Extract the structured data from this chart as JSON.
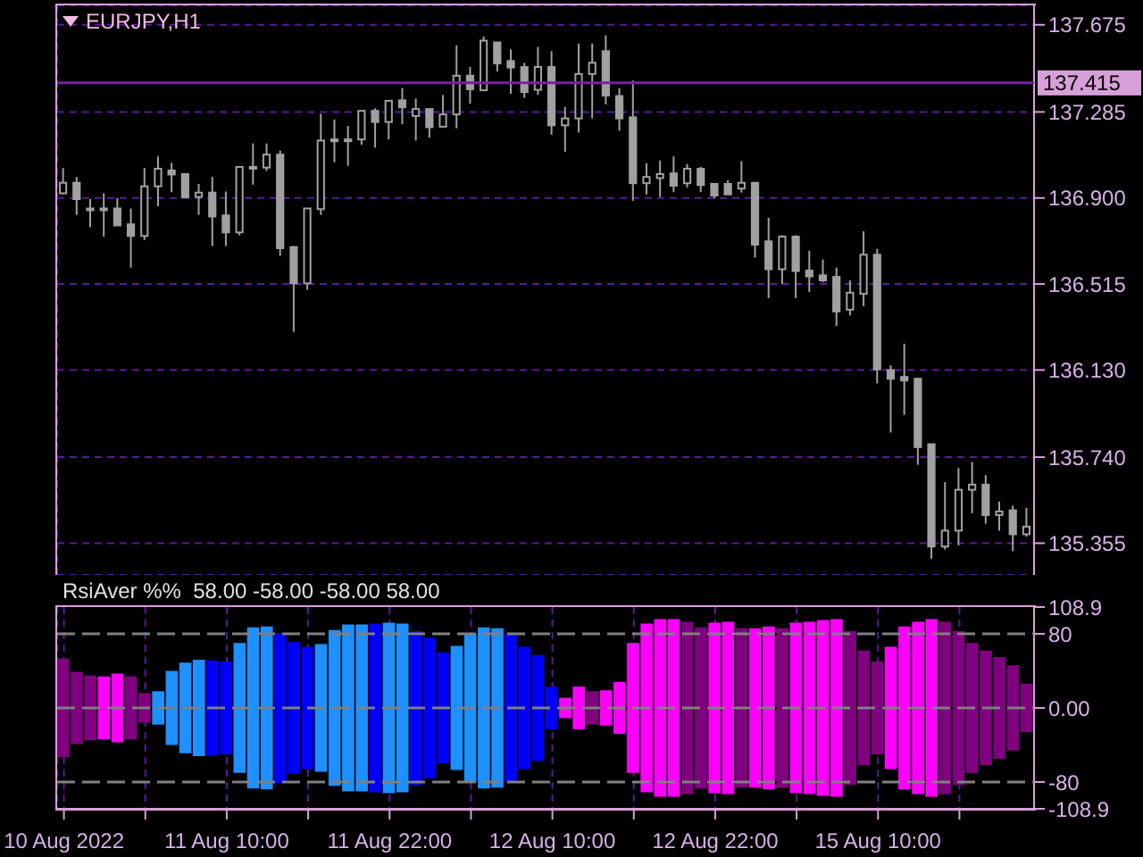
{
  "chart_data": [
    {
      "type": "candlestick",
      "title": "EURJPY,H1",
      "color": "#a0a0a0",
      "tick_labels": "y",
      "grid": true,
      "categories": [
        null,
        null,
        null,
        null,
        null,
        null,
        null,
        null,
        null,
        null,
        null,
        null,
        null,
        null,
        null,
        null,
        null,
        null,
        null,
        null,
        null,
        null,
        null,
        null,
        null,
        null,
        null,
        null,
        null,
        null,
        null,
        null,
        null,
        null,
        null,
        null,
        null,
        null,
        null,
        null,
        null,
        null,
        null,
        null,
        null,
        null,
        null,
        null,
        null,
        null,
        null,
        null,
        null,
        null,
        null,
        null,
        null,
        null,
        null,
        null,
        null,
        null,
        null,
        null,
        null,
        null,
        null,
        null,
        null,
        null,
        null,
        null
      ],
      "ohlc": [
        [
          136.921,
          137.034,
          136.916,
          136.968
        ],
        [
          136.968,
          136.994,
          136.824,
          136.895
        ],
        [
          136.853,
          136.895,
          136.769,
          136.853
        ],
        [
          136.853,
          136.921,
          136.727,
          136.853
        ],
        [
          136.853,
          136.9,
          136.777,
          136.777
        ],
        [
          136.782,
          136.853,
          136.588,
          136.73
        ],
        [
          136.73,
          137.034,
          136.712,
          136.952
        ],
        [
          136.952,
          137.086,
          136.863,
          137.031
        ],
        [
          137.023,
          137.057,
          136.926,
          137.005
        ],
        [
          137.007,
          137.01,
          136.903,
          136.903
        ],
        [
          136.905,
          136.963,
          136.824,
          136.924
        ],
        [
          136.924,
          136.994,
          136.685,
          136.817
        ],
        [
          136.822,
          136.929,
          136.685,
          136.746
        ],
        [
          136.746,
          137.039,
          136.733,
          137.039
        ],
        [
          137.039,
          137.144,
          136.96,
          137.039
        ],
        [
          137.036,
          137.144,
          137.021,
          137.094
        ],
        [
          137.094,
          137.112,
          136.641,
          136.675
        ],
        [
          136.68,
          136.685,
          136.301,
          136.518
        ],
        [
          136.518,
          136.853,
          136.489,
          136.853
        ],
        [
          136.85,
          137.277,
          136.824,
          137.157
        ],
        [
          137.162,
          137.251,
          137.06,
          137.162
        ],
        [
          137.162,
          137.222,
          137.044,
          137.162
        ],
        [
          137.162,
          137.29,
          137.138,
          137.29
        ],
        [
          137.29,
          137.301,
          137.125,
          137.24
        ],
        [
          137.24,
          137.335,
          137.162,
          137.335
        ],
        [
          137.337,
          137.392,
          137.23,
          137.306
        ],
        [
          137.267,
          137.345,
          137.157,
          137.298
        ],
        [
          137.298,
          137.3,
          137.17,
          137.217
        ],
        [
          137.219,
          137.361,
          137.217,
          137.274
        ],
        [
          137.274,
          137.583,
          137.212,
          137.447
        ],
        [
          137.447,
          137.486,
          137.322,
          137.387
        ],
        [
          137.382,
          137.623,
          137.38,
          137.604
        ],
        [
          137.596,
          137.598,
          137.466,
          137.502
        ],
        [
          137.513,
          137.565,
          137.366,
          137.484
        ],
        [
          137.486,
          137.505,
          137.348,
          137.374
        ],
        [
          137.384,
          137.576,
          137.361,
          137.486
        ],
        [
          137.486,
          137.557,
          137.183,
          137.225
        ],
        [
          137.225,
          137.308,
          137.107,
          137.256
        ],
        [
          137.256,
          137.591,
          137.193,
          137.455
        ],
        [
          137.455,
          137.591,
          137.256,
          137.505
        ],
        [
          137.557,
          137.628,
          137.319,
          137.358
        ],
        [
          137.356,
          137.392,
          137.201,
          137.256
        ],
        [
          137.261,
          137.426,
          136.887,
          136.966
        ],
        [
          136.966,
          137.055,
          136.916,
          136.994
        ],
        [
          136.989,
          137.068,
          136.905,
          137.007
        ],
        [
          137.01,
          137.086,
          136.926,
          136.955
        ],
        [
          136.966,
          137.052,
          136.947,
          137.031
        ],
        [
          137.031,
          137.039,
          136.926,
          136.958
        ],
        [
          136.963,
          136.965,
          136.897,
          136.911
        ],
        [
          136.963,
          136.979,
          136.916,
          136.916
        ],
        [
          136.942,
          137.065,
          136.924,
          136.968
        ],
        [
          136.968,
          136.97,
          136.633,
          136.691
        ],
        [
          136.706,
          136.811,
          136.452,
          136.581
        ],
        [
          136.581,
          136.733,
          136.515,
          136.727
        ],
        [
          136.727,
          136.733,
          136.452,
          136.573
        ],
        [
          136.575,
          136.664,
          136.479,
          136.549
        ],
        [
          136.554,
          136.625,
          136.523,
          136.531
        ],
        [
          136.547,
          136.588,
          136.327,
          136.392
        ],
        [
          136.4,
          136.531,
          136.374,
          136.476
        ],
        [
          136.471,
          136.751,
          136.416,
          136.646
        ],
        [
          136.646,
          136.672,
          136.07,
          136.133
        ],
        [
          136.13,
          136.151,
          135.85,
          136.091
        ],
        [
          136.099,
          136.248,
          135.929,
          136.083
        ],
        [
          136.091,
          136.093,
          135.706,
          135.785
        ],
        [
          135.798,
          135.8,
          135.285,
          135.34
        ],
        [
          135.34,
          135.628,
          135.327,
          135.411
        ],
        [
          135.411,
          135.691,
          135.345,
          135.594
        ],
        [
          135.594,
          135.719,
          135.489,
          135.617
        ],
        [
          135.617,
          135.659,
          135.442,
          135.481
        ],
        [
          135.481,
          135.541,
          135.411,
          135.497
        ],
        [
          135.502,
          135.523,
          135.319,
          135.395
        ],
        [
          135.395,
          135.513,
          135.384,
          135.429
        ]
      ],
      "ylim": [
        135.213,
        137.762
      ],
      "yticks": [
        137.675,
        137.285,
        {
          "value": 136.9,
          "label": "136.900"
        },
        136.515,
        {
          "value": 136.13,
          "label": "136.130"
        },
        {
          "value": 135.74,
          "label": "135.740"
        },
        135.355
      ],
      "ref_lines": [
        {
          "axis": "y",
          "value": 137.415,
          "label": "137.415",
          "color": "#7b1fa2",
          "line_style": "solid"
        }
      ]
    },
    {
      "type": "bar",
      "title": "RsiAver %%  58.00 -58.00 -58.00 58.00",
      "grid": "x",
      "categories": [
        "10 Aug 2022",
        null,
        null,
        null,
        null,
        null,
        null,
        null,
        null,
        null,
        null,
        null,
        "11 Aug 10:00",
        null,
        null,
        null,
        null,
        null,
        null,
        null,
        null,
        null,
        null,
        null,
        "11 Aug 22:00",
        null,
        null,
        null,
        null,
        null,
        null,
        null,
        null,
        null,
        null,
        null,
        "12 Aug 10:00",
        null,
        null,
        null,
        null,
        null,
        null,
        null,
        null,
        null,
        null,
        null,
        "12 Aug 22:00",
        null,
        null,
        null,
        null,
        null,
        null,
        null,
        null,
        null,
        null,
        null,
        "15 Aug 10:00",
        null,
        null,
        null,
        null,
        null,
        null,
        null,
        null,
        null,
        null,
        null
      ],
      "values": [
        106,
        78,
        70,
        68,
        74,
        68,
        32,
        36,
        80,
        98,
        104,
        102,
        100,
        140,
        174,
        176,
        162,
        142,
        132,
        138,
        168,
        180,
        180,
        182,
        184,
        182,
        166,
        152,
        120,
        134,
        162,
        174,
        172,
        160,
        132,
        114,
        46,
        22,
        46,
        36,
        38,
        56,
        140,
        182,
        192,
        192,
        186,
        174,
        184,
        186,
        172,
        172,
        176,
        172,
        184,
        186,
        190,
        192,
        166,
        124,
        100,
        132,
        176,
        186,
        192,
        186,
        166,
        140,
        124,
        110,
        92,
        52
      ],
      "base": [
        -53,
        -39,
        -35,
        -34,
        -37,
        -34,
        -16,
        -18,
        -40,
        -49,
        -52,
        -51,
        -50,
        -70,
        -87,
        -88,
        -81,
        -71,
        -66,
        -69,
        -84,
        -90,
        -90,
        -91,
        -92,
        -91,
        -83,
        -76,
        -60,
        -67,
        -81,
        -87,
        -86,
        -80,
        -66,
        -57,
        -23,
        -11,
        -23,
        -18,
        -19,
        -28,
        -70,
        -91,
        -96,
        -96,
        -93,
        -87,
        -92,
        -93,
        -86,
        -86,
        -88,
        -86,
        -92,
        -93,
        -95,
        -96,
        -83,
        -62,
        -50,
        -66,
        -88,
        -93,
        -96,
        -93,
        -83,
        -70,
        -62,
        -55,
        -46,
        -26
      ],
      "colors": [
        "#800080",
        "#800080",
        "#800080",
        "#ff00ff",
        "#ff00ff",
        "#800080",
        "#800080",
        "#1e90ff",
        "#1e90ff",
        "#1e90ff",
        "#1e90ff",
        "#0000ff",
        "#0000ff",
        "#1e90ff",
        "#1e90ff",
        "#1e90ff",
        "#0000ff",
        "#0000ff",
        "#0000ff",
        "#1e90ff",
        "#1e90ff",
        "#1e90ff",
        "#1e90ff",
        "#0000ff",
        "#1e90ff",
        "#1e90ff",
        "#0000ff",
        "#0000ff",
        "#0000ff",
        "#1e90ff",
        "#1e90ff",
        "#1e90ff",
        "#1e90ff",
        "#0000ff",
        "#0000ff",
        "#0000ff",
        "#0000ff",
        "#ff00ff",
        "#ff00ff",
        "#800080",
        "#ff00ff",
        "#ff00ff",
        "#ff00ff",
        "#ff00ff",
        "#ff00ff",
        "#ff00ff",
        "#800080",
        "#800080",
        "#ff00ff",
        "#ff00ff",
        "#800080",
        "#ff00ff",
        "#ff00ff",
        "#800080",
        "#ff00ff",
        "#ff00ff",
        "#ff00ff",
        "#ff00ff",
        "#800080",
        "#800080",
        "#800080",
        "#ff00ff",
        "#ff00ff",
        "#ff00ff",
        "#ff00ff",
        "#800080",
        "#800080",
        "#800080",
        "#800080",
        "#800080",
        "#800080",
        "#800080"
      ],
      "ylim": [
        -108.9,
        108.9
      ],
      "yticks": [
        108.9,
        80,
        {
          "value": 0,
          "label": "0.00"
        },
        -80,
        -108.9
      ],
      "ref_lines": [
        {
          "axis": "y",
          "value": 80,
          "color": "#808080",
          "line_style": "dashed"
        },
        {
          "axis": "y",
          "value": 0,
          "color": "#808080",
          "line_style": "dashed"
        },
        {
          "axis": "y",
          "value": -80,
          "color": "#808080",
          "line_style": "dashed"
        }
      ]
    }
  ]
}
